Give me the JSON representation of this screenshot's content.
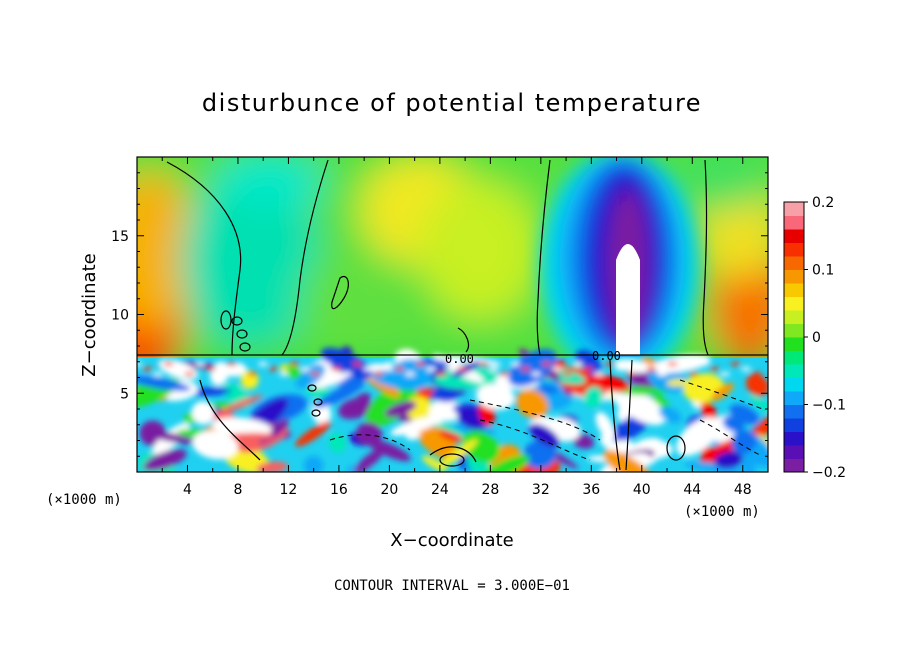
{
  "chart_data": {
    "type": "heatmap",
    "title": "disturbunce of potential temperature",
    "xlabel": "X−coordinate",
    "ylabel": "Z−coordinate",
    "x_unit_label_left": "(×1000 m)",
    "x_unit_label_right": "(×1000 m)",
    "xlim": [
      0,
      50
    ],
    "ylim": [
      0,
      20
    ],
    "xticks": [
      4,
      8,
      12,
      16,
      20,
      24,
      28,
      32,
      36,
      40,
      44,
      48
    ],
    "xtick_labels": [
      "4",
      "8",
      "12",
      "16",
      "20",
      "24",
      "28",
      "32",
      "36",
      "40",
      "44",
      "48"
    ],
    "yticks": [
      5,
      10,
      15
    ],
    "ytick_labels": [
      "5",
      "10",
      "15"
    ],
    "colorbar": {
      "range": [
        -0.2,
        0.2
      ],
      "tick_values": [
        0.2,
        0.1,
        0,
        -0.1,
        -0.2
      ],
      "tick_labels": [
        "0.2",
        "0.1",
        "0",
        "−0.1",
        "−0.2"
      ],
      "colors": [
        "#7a1fa2",
        "#5a0fb4",
        "#2a10c8",
        "#1040e0",
        "#1070f0",
        "#10a8f8",
        "#00d8f0",
        "#00e8b8",
        "#00e878",
        "#20e020",
        "#80e820",
        "#c8f020",
        "#f8f020",
        "#f8c800",
        "#f89800",
        "#f86800",
        "#f83000",
        "#e80000",
        "#f86878",
        "#f8a0a8"
      ]
    },
    "contour_labels": [
      "0.00",
      "0.00"
    ],
    "footer": "CONTOUR INTERVAL = 3.000E−01",
    "grid": false
  }
}
